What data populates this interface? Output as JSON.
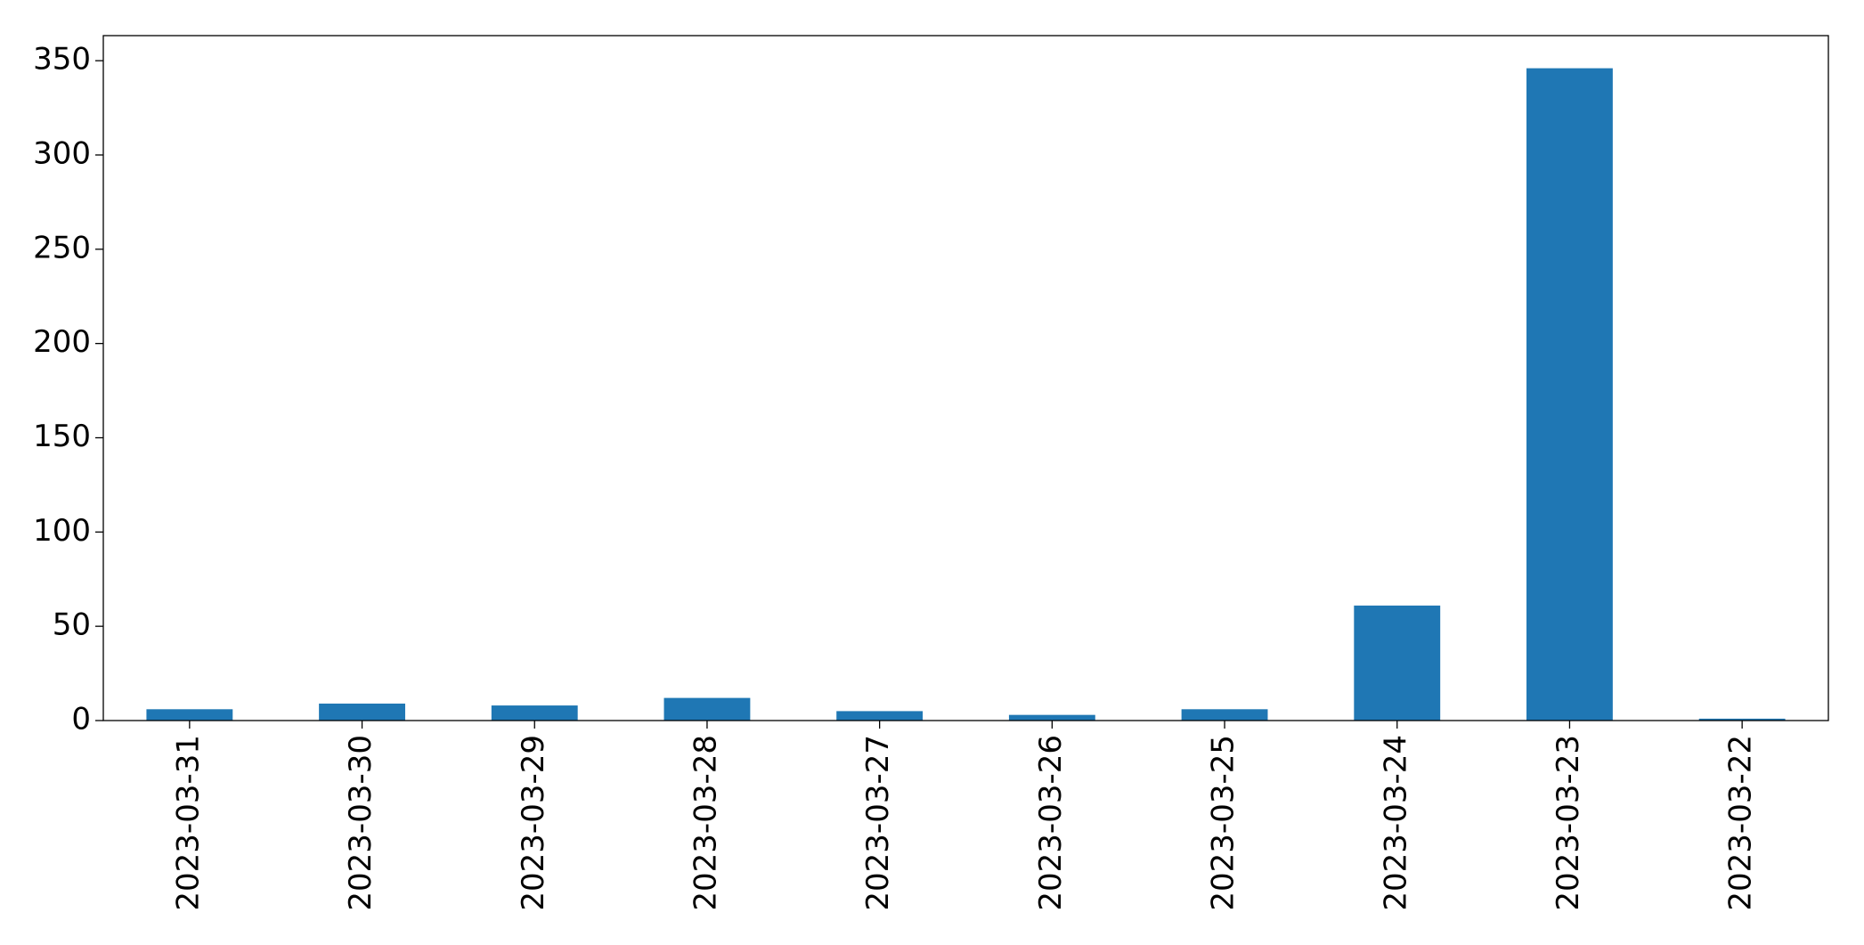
{
  "chart_data": {
    "type": "bar",
    "categories": [
      "2023-03-31",
      "2023-03-30",
      "2023-03-29",
      "2023-03-28",
      "2023-03-27",
      "2023-03-26",
      "2023-03-25",
      "2023-03-24",
      "2023-03-23",
      "2023-03-22"
    ],
    "values": [
      6,
      9,
      8,
      12,
      5,
      3,
      6,
      61,
      346,
      1
    ],
    "color": "#1f77b4",
    "ylim": [
      0,
      363.3
    ],
    "yticks": [
      0,
      50,
      100,
      150,
      200,
      250,
      300,
      350
    ],
    "grid": false
  }
}
